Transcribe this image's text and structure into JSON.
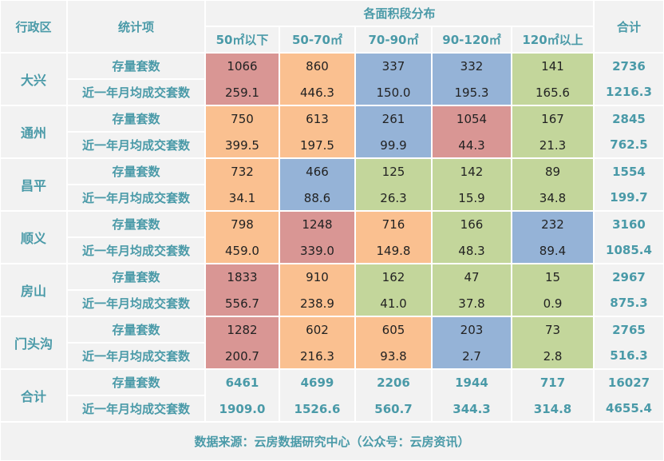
{
  "headers": {
    "district": "行政区",
    "metric": "统计项",
    "group": "各面积段分布",
    "total": "合计",
    "bands": [
      "50㎡以下",
      "50-70㎡",
      "70-90㎡",
      "90-120㎡",
      "120㎡以上"
    ]
  },
  "metrics": {
    "stock": "存量套数",
    "monthly": "近一年月均成交套数"
  },
  "colors": {
    "red": "#d99694",
    "orange": "#fac090",
    "blue": "#95b3d7",
    "green": "#c3d69b",
    "neutral": "#f2f2f2"
  },
  "chart_data": {
    "type": "table",
    "columns": [
      "50㎡以下",
      "50-70㎡",
      "70-90㎡",
      "90-120㎡",
      "120㎡以上",
      "合计"
    ],
    "rows": [
      {
        "district": "大兴",
        "stock": [
          "1066",
          "860",
          "337",
          "332",
          "141"
        ],
        "monthly": [
          "259.1",
          "446.3",
          "150.0",
          "195.3",
          "165.6"
        ],
        "stock_total": "2736",
        "monthly_total": "1216.3",
        "colors": [
          "red",
          "orange",
          "blue",
          "blue",
          "green"
        ]
      },
      {
        "district": "通州",
        "stock": [
          "750",
          "613",
          "261",
          "1054",
          "167"
        ],
        "monthly": [
          "399.5",
          "197.5",
          "99.9",
          "44.3",
          "21.3"
        ],
        "stock_total": "2845",
        "monthly_total": "762.5",
        "colors": [
          "orange",
          "orange",
          "blue",
          "red",
          "green"
        ]
      },
      {
        "district": "昌平",
        "stock": [
          "732",
          "466",
          "125",
          "142",
          "89"
        ],
        "monthly": [
          "34.1",
          "88.6",
          "26.3",
          "15.9",
          "34.8"
        ],
        "stock_total": "1554",
        "monthly_total": "199.7",
        "colors": [
          "orange",
          "blue",
          "green",
          "green",
          "green"
        ]
      },
      {
        "district": "顺义",
        "stock": [
          "798",
          "1248",
          "716",
          "166",
          "232"
        ],
        "monthly": [
          "459.0",
          "339.0",
          "149.8",
          "48.3",
          "89.4"
        ],
        "stock_total": "3160",
        "monthly_total": "1085.4",
        "colors": [
          "orange",
          "red",
          "orange",
          "green",
          "blue"
        ]
      },
      {
        "district": "房山",
        "stock": [
          "1833",
          "910",
          "162",
          "47",
          "15"
        ],
        "monthly": [
          "556.7",
          "238.9",
          "41.0",
          "37.8",
          "0.9"
        ],
        "stock_total": "2967",
        "monthly_total": "875.3",
        "colors": [
          "red",
          "orange",
          "green",
          "green",
          "green"
        ]
      },
      {
        "district": "门头沟",
        "stock": [
          "1282",
          "602",
          "605",
          "203",
          "73"
        ],
        "monthly": [
          "200.7",
          "216.3",
          "93.8",
          "2.7",
          "2.8"
        ],
        "stock_total": "2765",
        "monthly_total": "516.3",
        "colors": [
          "red",
          "orange",
          "orange",
          "blue",
          "green"
        ]
      }
    ],
    "total_row": {
      "district": "合计",
      "stock": [
        "6461",
        "4699",
        "2206",
        "1944",
        "717"
      ],
      "monthly": [
        "1909.0",
        "1526.6",
        "560.7",
        "344.3",
        "314.8"
      ],
      "stock_total": "16027",
      "monthly_total": "4655.4"
    }
  },
  "footer": "数据来源：云房数据研究中心（公众号：云房资讯）"
}
